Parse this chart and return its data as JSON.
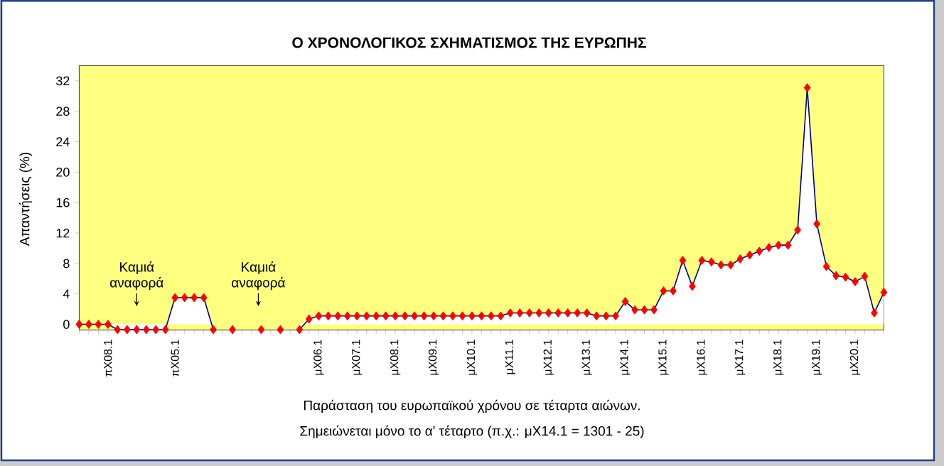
{
  "chart_data": {
    "type": "area",
    "title": "Ο ΧΡΟΝΟΛΟΓΙΚΟΣ ΣΧΗΜΑΤΙΣΜΟΣ ΤΗΣ ΕΥΡΩΠΗΣ",
    "ylabel": "Απαντήσεις (%)",
    "xlabel": "Παράσταση του ευρωπαϊκού χρόνου σε τέταρτα αιώνων.",
    "annotations": [
      "Καμιά αναφορά",
      "Καμιά αναφορά",
      "Σημειώνεται μόνο το α' τέταρτο (π.χ.: μX14.1 = 1301 - 25)"
    ],
    "categories": [
      null,
      null,
      null,
      "πX08.1",
      null,
      null,
      null,
      null,
      null,
      null,
      "πX05.1",
      null,
      null,
      null,
      null,
      null,
      null,
      null,
      null,
      null,
      null,
      null,
      null,
      null,
      null,
      "μX06.1",
      null,
      null,
      null,
      "μX07.1",
      null,
      null,
      null,
      "μX08.1",
      null,
      null,
      null,
      "μX09.1",
      null,
      null,
      null,
      "μX10.1",
      null,
      null,
      null,
      "μX11.1",
      null,
      null,
      null,
      "μX12.1",
      null,
      null,
      null,
      "μX13.1",
      null,
      null,
      null,
      "μX14.1",
      null,
      null,
      null,
      "μX15.1",
      null,
      null,
      null,
      "μX16.1",
      null,
      null,
      null,
      "μX17.1",
      null,
      null,
      null,
      "μX18.1",
      null,
      null,
      null,
      "μX19.1",
      null,
      null,
      null,
      "μX20.1",
      null,
      null,
      null
    ],
    "series": [
      {
        "type": "scatter",
        "color": "#ff0000",
        "values": [
          null,
          null,
          null,
          null,
          null,
          null,
          null,
          null,
          null,
          null,
          null,
          null,
          null,
          null,
          null,
          null,
          -0.7,
          null,
          null,
          -0.7,
          null,
          -0.7,
          null,
          null,
          null,
          null,
          null,
          null,
          null,
          null,
          null,
          null,
          null,
          null,
          null,
          null,
          null,
          null,
          null,
          null,
          null,
          null,
          null,
          null,
          null,
          null,
          null,
          null,
          null,
          null,
          null,
          null,
          null,
          null,
          null,
          null,
          null,
          null,
          null,
          null,
          null,
          null,
          null,
          null,
          null,
          null,
          null,
          null,
          null,
          null,
          null,
          null,
          null,
          null,
          null,
          null,
          null,
          null,
          null,
          null,
          null,
          null,
          null,
          null,
          null
        ]
      }
    ],
    "values": [
      0,
      0,
      0,
      0,
      -0.7,
      -0.7,
      -0.7,
      -0.7,
      -0.7,
      -0.7,
      3.5,
      3.5,
      3.5,
      3.5,
      -0.7,
      null,
      null,
      null,
      null,
      null,
      null,
      null,
      null,
      -0.7,
      0.7,
      1.1,
      1.1,
      1.1,
      1.1,
      1.1,
      1.1,
      1.1,
      1.1,
      1.1,
      1.1,
      1.1,
      1.1,
      1.1,
      1.1,
      1.1,
      1.1,
      1.1,
      1.1,
      1.1,
      1.1,
      1.5,
      1.5,
      1.5,
      1.5,
      1.5,
      1.5,
      1.5,
      1.5,
      1.5,
      1.1,
      1.1,
      1.1,
      3.0,
      1.9,
      1.9,
      1.9,
      4.4,
      4.4,
      8.4,
      5.0,
      8.4,
      8.2,
      7.8,
      7.8,
      8.6,
      9.1,
      9.6,
      10.1,
      10.4,
      10.4,
      12.4,
      31.1,
      13.2,
      7.6,
      6.4,
      6.2,
      5.6,
      6.3,
      1.5,
      4.2
    ],
    "color": "#000080",
    "colors": [
      "#ff0000",
      "#ff0000",
      "#ff0000",
      "#ff0000",
      "#ff0000",
      "#ff0000",
      "#ff0000",
      "#ff0000",
      "#ff0000",
      "#ff0000",
      "#ff0000",
      "#ff0000",
      "#ff0000",
      "#ff0000",
      "#ff0000",
      "#ff0000",
      "#ff0000",
      "#ff0000",
      "#ff0000",
      "#ff0000",
      "#ff0000",
      "#ff0000",
      "#ff0000",
      "#ff0000",
      "#ff0000",
      "#ff0000",
      "#ff0000",
      "#ff0000",
      "#ff0000",
      "#ff0000",
      "#ff0000",
      "#ff0000",
      "#ff0000",
      "#ff0000",
      "#ff0000",
      "#ff0000",
      "#ff0000",
      "#ff0000",
      "#ff0000",
      "#ff0000",
      "#ff0000",
      "#ff0000",
      "#ff0000",
      "#ff0000",
      "#ff0000",
      "#ff0000",
      "#ff0000",
      "#ff0000",
      "#ff0000",
      "#ff0000",
      "#ff0000",
      "#ff0000",
      "#ff0000",
      "#ff0000",
      "#ff0000",
      "#ff0000",
      "#ff0000",
      "#ff0000",
      "#ff0000",
      "#ff0000",
      "#ff0000",
      "#ff0000",
      "#ff0000",
      "#ff0000",
      "#ff0000",
      "#ff0000",
      "#ff0000",
      "#ff0000",
      "#ff0000",
      "#ff0000",
      "#ff0000",
      "#ff0000",
      "#ff0000",
      "#ff0000",
      "#ff0000",
      "#ff0000",
      "#ff0000",
      "#ff0000",
      "#ff0000",
      "#ff0000",
      "#ff0000",
      "#ff0000",
      "#ff0000",
      "#ff0000",
      "#ff0000"
    ],
    "marker": "diamond",
    "ylim": [
      -0.75,
      34
    ],
    "yticks": [
      0,
      4,
      8,
      12,
      16,
      20,
      24,
      28,
      32
    ],
    "grid": false
  }
}
